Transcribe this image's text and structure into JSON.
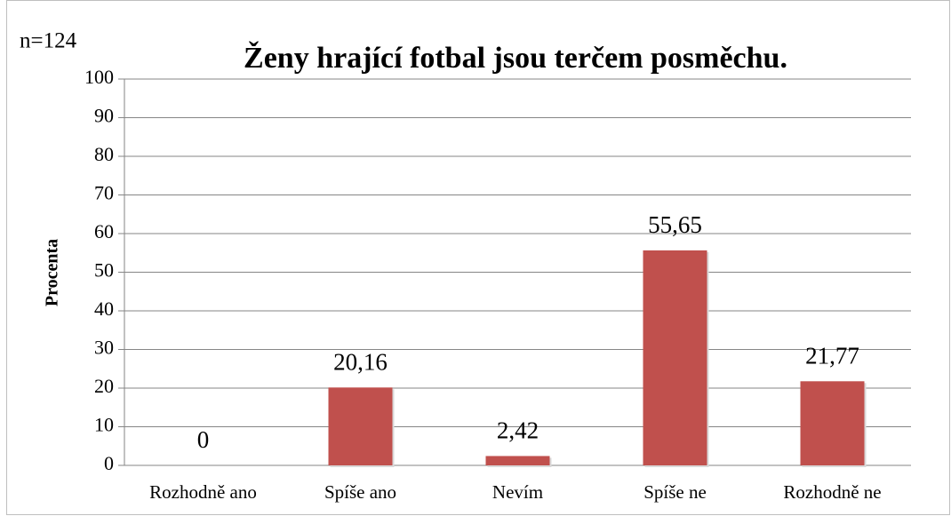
{
  "chart_data": {
    "type": "bar",
    "title": "Ženy hrající fotbal jsou terčem posměchu.",
    "annotation": "n=124",
    "ylabel": "Procenta",
    "categories": [
      "Rozhodně ano",
      "Spíše ano",
      "Nevím",
      "Spíše ne",
      "Rozhodně ne"
    ],
    "values": [
      0,
      20.16,
      2.42,
      55.65,
      21.77
    ],
    "value_labels": [
      "0",
      "20,16",
      "2,42",
      "55,65",
      "21,77"
    ],
    "color": "#c0504d",
    "ylim": [
      0,
      100
    ],
    "yticks": [
      0,
      10,
      20,
      30,
      40,
      50,
      60,
      70,
      80,
      90,
      100
    ],
    "grid": true
  }
}
